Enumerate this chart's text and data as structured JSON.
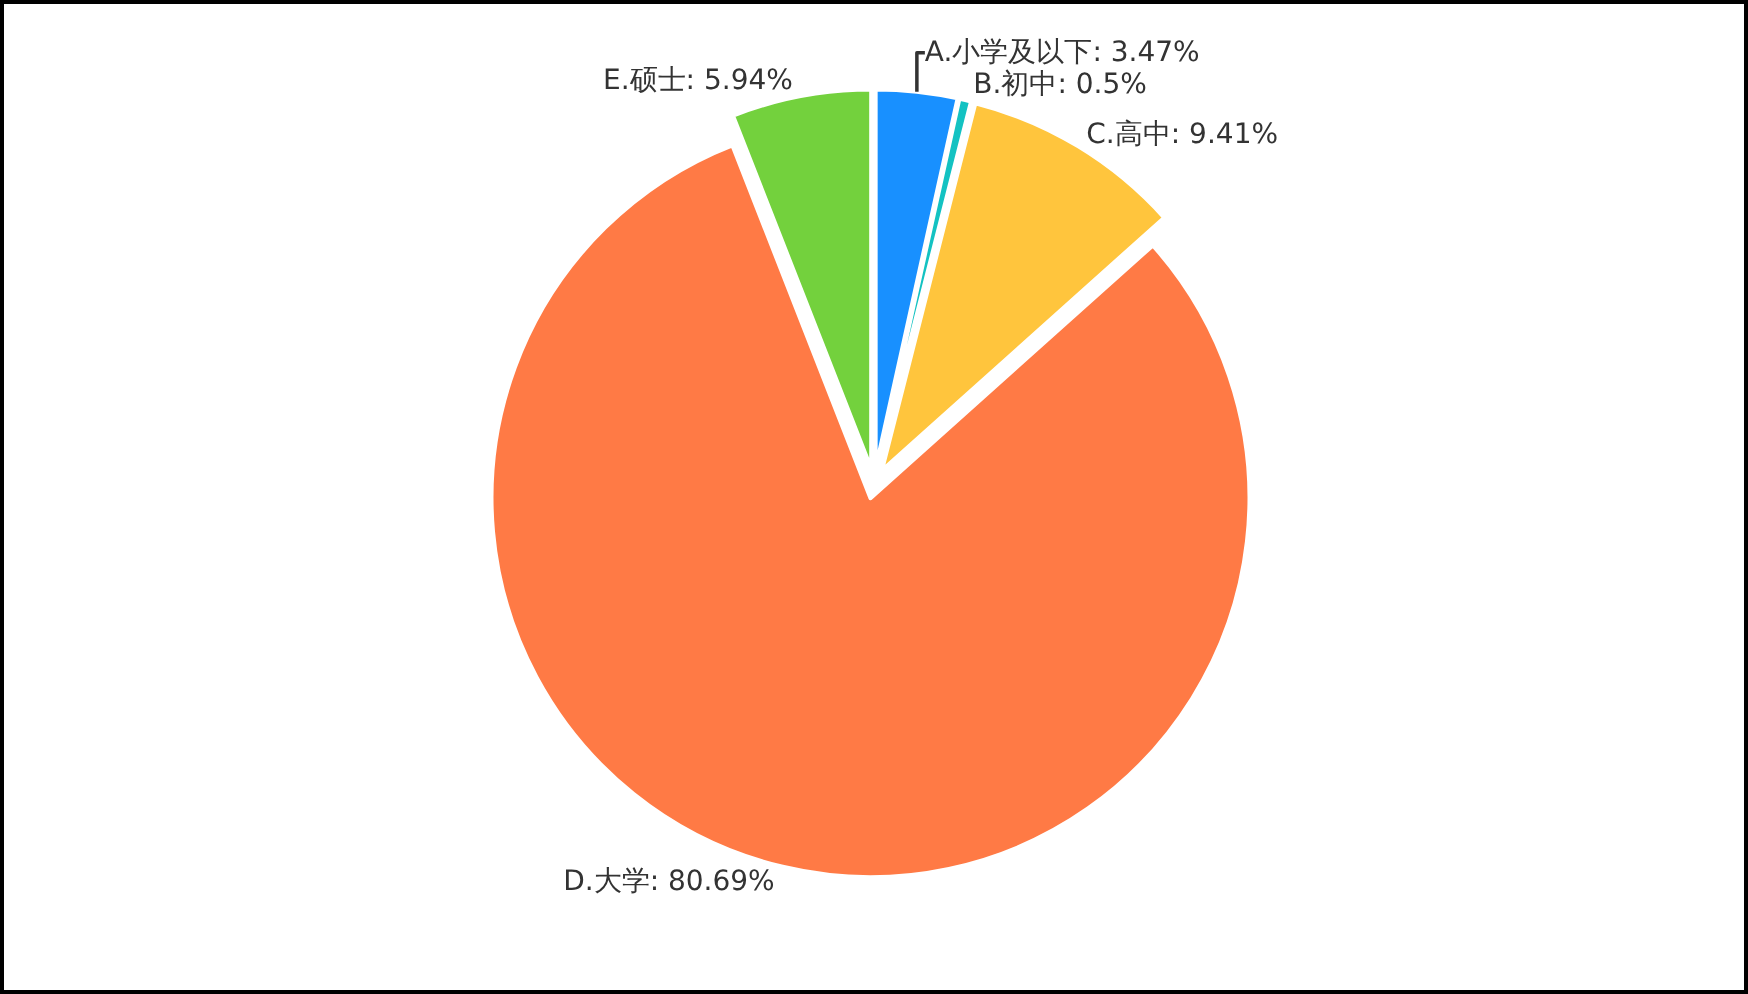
{
  "chart_data": {
    "type": "pie",
    "categories": [
      "A.小学及以下",
      "B.初中",
      "C.高中",
      "D.大学",
      "E.硕士"
    ],
    "values": [
      3.47,
      0.5,
      9.41,
      80.69,
      5.94
    ],
    "value_labels": [
      "3.47%",
      "0.5%",
      "9.41%",
      "80.69%",
      "5.94%"
    ],
    "colors": [
      "#1890ff",
      "#13c2c2",
      "#ffc53d",
      "#ff7a45",
      "#73d13d"
    ],
    "legend": false
  }
}
